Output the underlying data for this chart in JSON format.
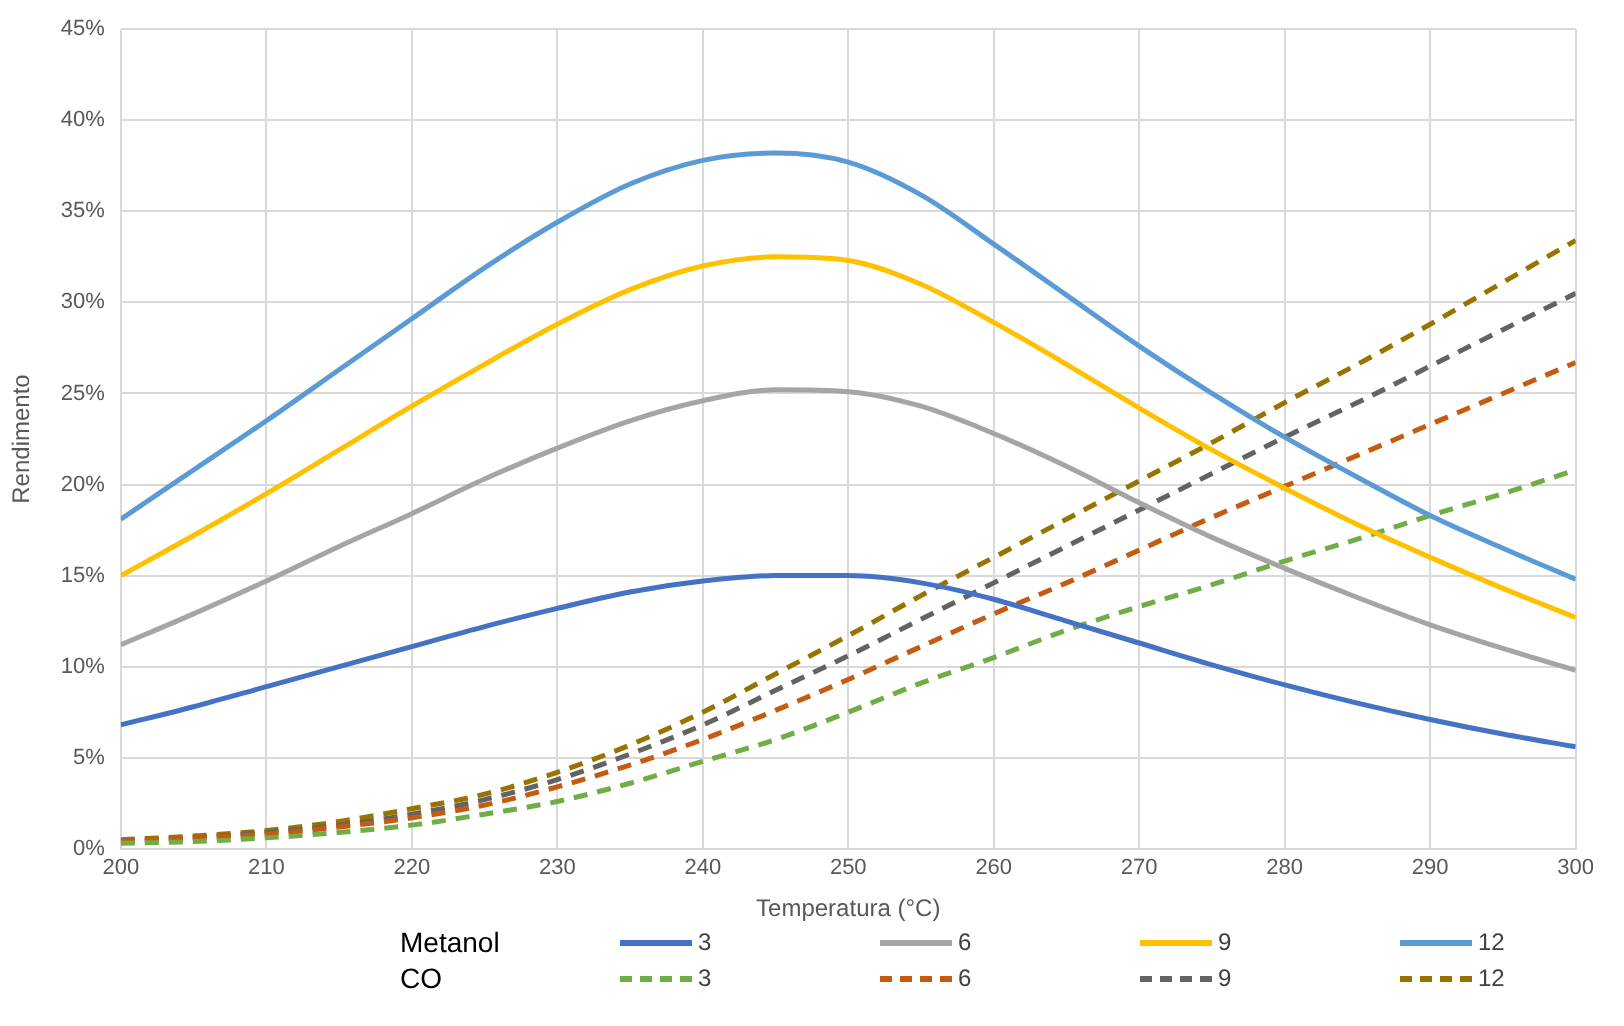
{
  "chart_data": {
    "type": "line",
    "xlabel": "Temperatura (°C)",
    "ylabel": "Rendimento",
    "x": [
      200,
      205,
      210,
      215,
      220,
      225,
      230,
      235,
      240,
      245,
      250,
      255,
      260,
      265,
      270,
      275,
      280,
      285,
      290,
      295,
      300
    ],
    "xlim": [
      200,
      300
    ],
    "xticks": [
      200,
      210,
      220,
      230,
      240,
      250,
      260,
      270,
      280,
      290,
      300
    ],
    "ylim": [
      0,
      45
    ],
    "yticks": [
      {
        "value": 0,
        "label": "0%"
      },
      {
        "value": 5,
        "label": "5%"
      },
      {
        "value": 10,
        "label": "10%"
      },
      {
        "value": 15,
        "label": "15%"
      },
      {
        "value": 20,
        "label": "20%"
      },
      {
        "value": 25,
        "label": "25%"
      },
      {
        "value": 30,
        "label": "30%"
      },
      {
        "value": 35,
        "label": "35%"
      },
      {
        "value": 40,
        "label": "40%"
      },
      {
        "value": 45,
        "label": "45%"
      }
    ],
    "grid": true,
    "legend": "bottom",
    "marker": "none",
    "annotations": [
      "Metanol",
      "CO"
    ],
    "series": [
      {
        "name": "3",
        "color": "#4472c4",
        "line_style": "solid",
        "values": [
          6.8,
          7.8,
          8.9,
          10.0,
          11.1,
          12.2,
          13.2,
          14.1,
          14.7,
          15.0,
          15.0,
          14.6,
          13.7,
          12.5,
          11.3,
          10.1,
          9.0,
          8.0,
          7.1,
          6.3,
          5.6
        ]
      },
      {
        "name": "6",
        "color": "#a5a5a5",
        "line_style": "solid",
        "values": [
          11.2,
          12.9,
          14.7,
          16.6,
          18.4,
          20.3,
          22.0,
          23.5,
          24.6,
          25.2,
          25.1,
          24.3,
          22.8,
          21.0,
          19.0,
          17.1,
          15.4,
          13.8,
          12.3,
          11.0,
          9.8
        ]
      },
      {
        "name": "9",
        "color": "#ffc000",
        "line_style": "solid",
        "values": [
          15.0,
          17.2,
          19.5,
          21.9,
          24.3,
          26.6,
          28.8,
          30.7,
          32.0,
          32.5,
          32.3,
          31.0,
          28.9,
          26.6,
          24.2,
          21.9,
          19.8,
          17.8,
          16.0,
          14.3,
          12.7
        ]
      },
      {
        "name": "12",
        "color": "#5b9bd5",
        "line_style": "solid",
        "values": [
          18.1,
          20.8,
          23.5,
          26.3,
          29.1,
          31.9,
          34.4,
          36.5,
          37.8,
          38.2,
          37.7,
          35.9,
          33.2,
          30.4,
          27.6,
          25.0,
          22.6,
          20.4,
          18.3,
          16.5,
          14.8
        ]
      },
      {
        "name": "3",
        "color": "#70ad47",
        "line_style": "dashed",
        "values": [
          0.3,
          0.4,
          0.6,
          0.9,
          1.3,
          1.9,
          2.6,
          3.6,
          4.8,
          6.0,
          7.5,
          9.1,
          10.5,
          12.0,
          13.3,
          14.5,
          15.8,
          17.0,
          18.3,
          19.5,
          20.8
        ]
      },
      {
        "name": "6",
        "color": "#c55a11",
        "line_style": "dashed",
        "values": [
          0.4,
          0.6,
          0.8,
          1.2,
          1.7,
          2.4,
          3.4,
          4.6,
          6.0,
          7.6,
          9.3,
          11.1,
          12.9,
          14.6,
          16.4,
          18.2,
          19.9,
          21.6,
          23.3,
          25.0,
          26.7
        ]
      },
      {
        "name": "9",
        "color": "#636363",
        "line_style": "dashed",
        "values": [
          0.4,
          0.6,
          0.9,
          1.3,
          1.9,
          2.7,
          3.8,
          5.2,
          6.8,
          8.7,
          10.6,
          12.6,
          14.6,
          16.6,
          18.6,
          20.6,
          22.6,
          24.5,
          26.5,
          28.5,
          30.5
        ]
      },
      {
        "name": "12",
        "color": "#997300",
        "line_style": "dashed",
        "values": [
          0.5,
          0.7,
          1.0,
          1.5,
          2.2,
          3.0,
          4.2,
          5.7,
          7.5,
          9.6,
          11.7,
          13.9,
          16.0,
          18.1,
          20.2,
          22.3,
          24.5,
          26.6,
          28.8,
          31.1,
          33.4
        ]
      }
    ]
  }
}
